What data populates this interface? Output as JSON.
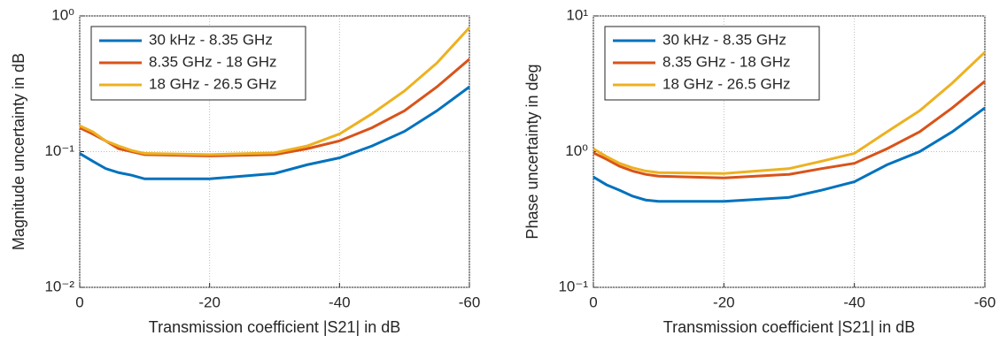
{
  "chart_data": [
    {
      "type": "line",
      "xlabel": "Transmission coefficient |S21| in dB",
      "ylabel": "Magnitude uncertainty in dB",
      "x": [
        0,
        -2,
        -4,
        -6,
        -8,
        -10,
        -20,
        -30,
        -35,
        -40,
        -45,
        -50,
        -55,
        -60
      ],
      "xlim": [
        0,
        -60
      ],
      "xticks": [
        0,
        -20,
        -40,
        -60
      ],
      "ylim": [
        0.01,
        1
      ],
      "yscale": "log",
      "yticks": [
        {
          "value": 0.01,
          "label": "10⁻²"
        },
        {
          "value": 0.1,
          "label": "10⁻¹"
        },
        {
          "value": 1,
          "label": "10⁰"
        }
      ],
      "grid": true,
      "legend": "upper left",
      "series": [
        {
          "name": "30 kHz - 8.35 GHz",
          "color": "#0072BD",
          "values": [
            0.097,
            0.085,
            0.075,
            0.07,
            0.067,
            0.063,
            0.063,
            0.069,
            0.08,
            0.09,
            0.11,
            0.141,
            0.2,
            0.3
          ]
        },
        {
          "name": "8.35 GHz - 18 GHz",
          "color": "#D95319",
          "values": [
            0.15,
            0.135,
            0.12,
            0.105,
            0.1,
            0.095,
            0.093,
            0.095,
            0.105,
            0.12,
            0.15,
            0.2,
            0.3,
            0.48
          ]
        },
        {
          "name": "18 GHz - 26.5 GHz",
          "color": "#EDB120",
          "values": [
            0.155,
            0.14,
            0.12,
            0.11,
            0.102,
            0.097,
            0.095,
            0.098,
            0.11,
            0.135,
            0.19,
            0.28,
            0.45,
            0.82
          ]
        }
      ]
    },
    {
      "type": "line",
      "xlabel": "Transmission coefficient |S21| in dB",
      "ylabel": "Phase uncertainty in deg",
      "x": [
        0,
        -2,
        -4,
        -6,
        -8,
        -10,
        -20,
        -30,
        -35,
        -40,
        -45,
        -50,
        -55,
        -60
      ],
      "xlim": [
        0,
        -60
      ],
      "xticks": [
        0,
        -20,
        -40,
        -60
      ],
      "ylim": [
        0.1,
        10
      ],
      "yscale": "log",
      "yticks": [
        {
          "value": 0.1,
          "label": "10⁻¹"
        },
        {
          "value": 1,
          "label": "10⁰"
        },
        {
          "value": 10,
          "label": "10¹"
        }
      ],
      "grid": true,
      "legend": "upper left",
      "series": [
        {
          "name": "30 kHz - 8.35 GHz",
          "color": "#0072BD",
          "values": [
            0.65,
            0.57,
            0.52,
            0.47,
            0.44,
            0.43,
            0.43,
            0.46,
            0.52,
            0.6,
            0.8,
            1.0,
            1.4,
            2.1
          ]
        },
        {
          "name": "8.35 GHz - 18 GHz",
          "color": "#D95319",
          "values": [
            0.98,
            0.88,
            0.78,
            0.72,
            0.68,
            0.66,
            0.64,
            0.68,
            0.75,
            0.82,
            1.05,
            1.4,
            2.1,
            3.3
          ]
        },
        {
          "name": "18 GHz - 26.5 GHz",
          "color": "#EDB120",
          "values": [
            1.05,
            0.92,
            0.82,
            0.76,
            0.72,
            0.7,
            0.69,
            0.75,
            0.85,
            0.97,
            1.4,
            2.0,
            3.2,
            5.4
          ]
        }
      ]
    }
  ]
}
